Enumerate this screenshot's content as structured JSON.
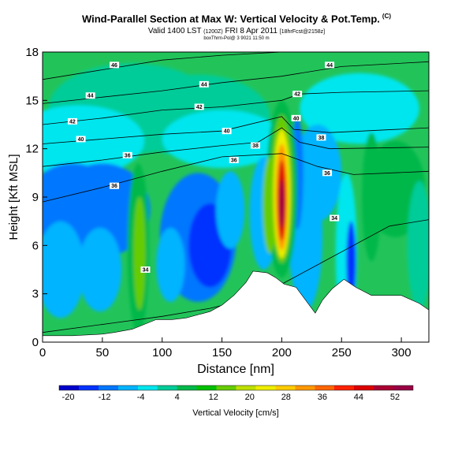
{
  "header": {
    "title": "Wind-Parallel Section at Max W: Vertical Velocity & Pot.Temp.",
    "title_mark": "(C)",
    "valid_main": "Valid 1400 LST",
    "valid_utc": "(1200Z)",
    "valid_date": "FRI 8 Apr 2011",
    "valid_fcst": "[18hrFcst@2158z]",
    "credit": "boxThrm-Pol@ 3 9021 11:50 m"
  },
  "chart_data": {
    "type": "heatmap",
    "xlabel": "Distance [nm]",
    "ylabel": "Height [Kft MSL]",
    "xlim": [
      0,
      323
    ],
    "ylim": [
      0,
      18
    ],
    "x_ticks": [
      0,
      50,
      100,
      150,
      200,
      250,
      300
    ],
    "y_ticks": [
      0,
      3,
      6,
      9,
      12,
      15,
      18
    ],
    "colorbar": {
      "label": "Vertical Velocity [cm/s]",
      "min": -22,
      "max": 56,
      "tick_values": [
        -20,
        -12,
        -4,
        4,
        12,
        20,
        28,
        36,
        44,
        52
      ],
      "tick_labels": [
        "-20",
        "-12",
        "-4",
        "4",
        "12",
        "20",
        "28",
        "36",
        "44",
        "52"
      ],
      "colors": [
        "#0000cc",
        "#0033ff",
        "#0077ff",
        "#00b4ff",
        "#00e6ee",
        "#00cc99",
        "#00b84a",
        "#00c000",
        "#66cc00",
        "#bfe000",
        "#eeee00",
        "#ffcc00",
        "#ff9900",
        "#ff6600",
        "#ff2200",
        "#dd0000",
        "#aa0033",
        "#990044"
      ]
    },
    "field_background": "#22c45a",
    "terrain_kft": [
      {
        "x": 0,
        "y": 0.4
      },
      {
        "x": 25,
        "y": 0.4
      },
      {
        "x": 50,
        "y": 0.5
      },
      {
        "x": 60,
        "y": 0.6
      },
      {
        "x": 75,
        "y": 0.8
      },
      {
        "x": 85,
        "y": 1.1
      },
      {
        "x": 95,
        "y": 1.4
      },
      {
        "x": 108,
        "y": 1.4
      },
      {
        "x": 120,
        "y": 1.5
      },
      {
        "x": 140,
        "y": 1.9
      },
      {
        "x": 150,
        "y": 2.3
      },
      {
        "x": 160,
        "y": 2.9
      },
      {
        "x": 170,
        "y": 3.7
      },
      {
        "x": 176,
        "y": 4.4
      },
      {
        "x": 188,
        "y": 4.3
      },
      {
        "x": 195,
        "y": 4.0
      },
      {
        "x": 202,
        "y": 3.6
      },
      {
        "x": 212,
        "y": 3.4
      },
      {
        "x": 222,
        "y": 2.4
      },
      {
        "x": 228,
        "y": 1.8
      },
      {
        "x": 234,
        "y": 2.6
      },
      {
        "x": 242,
        "y": 3.3
      },
      {
        "x": 252,
        "y": 3.9
      },
      {
        "x": 262,
        "y": 3.4
      },
      {
        "x": 275,
        "y": 2.9
      },
      {
        "x": 300,
        "y": 2.9
      },
      {
        "x": 315,
        "y": 2.4
      },
      {
        "x": 323,
        "y": 2.0
      }
    ],
    "velocity_cells": [
      {
        "x": 75,
        "y": 14.5,
        "rx": 70,
        "ry": 2.8,
        "v": 2
      },
      {
        "x": 130,
        "y": 14.0,
        "rx": 60,
        "ry": 2.6,
        "v": 1
      },
      {
        "x": 30,
        "y": 12.5,
        "rx": 55,
        "ry": 2.2,
        "v": -2
      },
      {
        "x": 150,
        "y": 12.6,
        "rx": 50,
        "ry": 1.8,
        "v": -2
      },
      {
        "x": 265,
        "y": 14.5,
        "rx": 50,
        "ry": 2.2,
        "v": -1
      },
      {
        "x": 230,
        "y": 10.5,
        "rx": 20,
        "ry": 3.0,
        "v": -6
      },
      {
        "x": 295,
        "y": 9.5,
        "rx": 25,
        "ry": 3.0,
        "v": 4
      },
      {
        "x": 25,
        "y": 8.5,
        "rx": 38,
        "ry": 2.6,
        "v": -10
      },
      {
        "x": 50,
        "y": 8.2,
        "rx": 40,
        "ry": 2.9,
        "v": -10
      },
      {
        "x": 15,
        "y": 4.5,
        "rx": 20,
        "ry": 3.0,
        "v": -6
      },
      {
        "x": 48,
        "y": 4.5,
        "rx": 18,
        "ry": 2.6,
        "v": -5
      },
      {
        "x": 130,
        "y": 6.5,
        "rx": 32,
        "ry": 4.0,
        "v": -10
      },
      {
        "x": 140,
        "y": 6.0,
        "rx": 18,
        "ry": 2.6,
        "v": -16
      },
      {
        "x": 107,
        "y": 4.8,
        "rx": 12,
        "ry": 2.3,
        "v": -5
      },
      {
        "x": 157,
        "y": 8.2,
        "rx": 12,
        "ry": 2.4,
        "v": -5
      },
      {
        "x": 80,
        "y": 5.8,
        "rx": 9,
        "ry": 5.3,
        "v": 8
      },
      {
        "x": 81,
        "y": 5.5,
        "rx": 5,
        "ry": 3.5,
        "v": 16
      },
      {
        "x": 185,
        "y": 8.0,
        "rx": 12,
        "ry": 3.5,
        "v": -5
      },
      {
        "x": 220,
        "y": 6.5,
        "rx": 14,
        "ry": 4.5,
        "v": -5
      },
      {
        "x": 213,
        "y": 10.5,
        "rx": 5,
        "ry": 3.5,
        "v": -12
      },
      {
        "x": 254,
        "y": 5.5,
        "rx": 9,
        "ry": 5.0,
        "v": -4
      },
      {
        "x": 258,
        "y": 5.0,
        "rx": 4,
        "ry": 2.5,
        "v": -14
      },
      {
        "x": 275,
        "y": 9.0,
        "rx": 8,
        "ry": 4.0,
        "v": 7
      },
      {
        "x": 315,
        "y": 6.0,
        "rx": 10,
        "ry": 4.0,
        "v": 2
      },
      {
        "x": 200,
        "y": 9.5,
        "rx": 13,
        "ry": 5.5,
        "v": 8
      },
      {
        "x": 190,
        "y": 8.5,
        "rx": 6,
        "ry": 3.0,
        "v": 14
      },
      {
        "x": 200,
        "y": 9.5,
        "rx": 9,
        "ry": 4.6,
        "v": 14
      },
      {
        "x": 200,
        "y": 9.2,
        "rx": 7,
        "ry": 4.0,
        "v": 22
      },
      {
        "x": 200,
        "y": 9.0,
        "rx": 5,
        "ry": 3.3,
        "v": 32
      },
      {
        "x": 200,
        "y": 8.8,
        "rx": 3.5,
        "ry": 2.5,
        "v": 44
      },
      {
        "x": 200,
        "y": 8.6,
        "rx": 2,
        "ry": 1.5,
        "v": 52
      }
    ],
    "isentropes": [
      {
        "value": 34,
        "points": [
          [
            0,
            0.6
          ],
          [
            60,
            1.2
          ],
          [
            100,
            1.6
          ],
          [
            140,
            2.1
          ],
          [
            180,
            2.8
          ],
          [
            200,
            3.6
          ],
          [
            230,
            4.8
          ],
          [
            260,
            6.0
          ],
          [
            290,
            7.2
          ],
          [
            323,
            7.6
          ]
        ]
      },
      {
        "value": 36,
        "points": [
          [
            0,
            8.7
          ],
          [
            50,
            9.6
          ],
          [
            100,
            10.6
          ],
          [
            150,
            11.5
          ],
          [
            200,
            11.7
          ],
          [
            230,
            10.9
          ],
          [
            260,
            10.4
          ],
          [
            323,
            10.6
          ]
        ]
      },
      {
        "value": 38,
        "points": [
          [
            0,
            10.9
          ],
          [
            50,
            11.3
          ],
          [
            100,
            11.8
          ],
          [
            150,
            12.2
          ],
          [
            180,
            12.4
          ],
          [
            200,
            13.3
          ],
          [
            215,
            12.4
          ],
          [
            240,
            12.0
          ],
          [
            323,
            12.1
          ]
        ]
      },
      {
        "value": 40,
        "points": [
          [
            0,
            12.3
          ],
          [
            50,
            12.6
          ],
          [
            100,
            12.9
          ],
          [
            150,
            13.1
          ],
          [
            200,
            14.0
          ],
          [
            210,
            13.2
          ],
          [
            240,
            13.0
          ],
          [
            323,
            13.3
          ]
        ]
      },
      {
        "value": 42,
        "points": [
          [
            0,
            13.5
          ],
          [
            50,
            13.9
          ],
          [
            100,
            14.4
          ],
          [
            150,
            14.6
          ],
          [
            200,
            15.0
          ],
          [
            215,
            15.4
          ],
          [
            250,
            15.5
          ],
          [
            323,
            15.6
          ]
        ]
      },
      {
        "value": 44,
        "points": [
          [
            0,
            14.8
          ],
          [
            50,
            15.2
          ],
          [
            100,
            15.6
          ],
          [
            150,
            16.1
          ],
          [
            200,
            16.5
          ],
          [
            250,
            17.1
          ],
          [
            323,
            17.4
          ]
        ]
      },
      {
        "value": 46,
        "points": [
          [
            0,
            16.3
          ],
          [
            50,
            16.9
          ],
          [
            100,
            17.5
          ],
          [
            150,
            17.8
          ],
          [
            200,
            18.0
          ]
        ]
      }
    ],
    "isentrope_labels": [
      {
        "text": "46",
        "x": 60,
        "y": 17.2
      },
      {
        "text": "44",
        "x": 40,
        "y": 15.3
      },
      {
        "text": "44",
        "x": 135,
        "y": 16.0
      },
      {
        "text": "44",
        "x": 240,
        "y": 17.2
      },
      {
        "text": "42",
        "x": 25,
        "y": 13.7
      },
      {
        "text": "42",
        "x": 131,
        "y": 14.6
      },
      {
        "text": "42",
        "x": 213,
        "y": 15.4
      },
      {
        "text": "40",
        "x": 32,
        "y": 12.6
      },
      {
        "text": "40",
        "x": 154,
        "y": 13.1
      },
      {
        "text": "40",
        "x": 212,
        "y": 13.9
      },
      {
        "text": "38",
        "x": 178,
        "y": 12.2
      },
      {
        "text": "38",
        "x": 233,
        "y": 12.7
      },
      {
        "text": "36",
        "x": 71,
        "y": 11.6
      },
      {
        "text": "36",
        "x": 160,
        "y": 11.3
      },
      {
        "text": "36",
        "x": 238,
        "y": 10.5
      },
      {
        "text": "36",
        "x": 60,
        "y": 9.7
      },
      {
        "text": "34",
        "x": 244,
        "y": 7.7
      },
      {
        "text": "34",
        "x": 86,
        "y": 4.5
      }
    ]
  }
}
